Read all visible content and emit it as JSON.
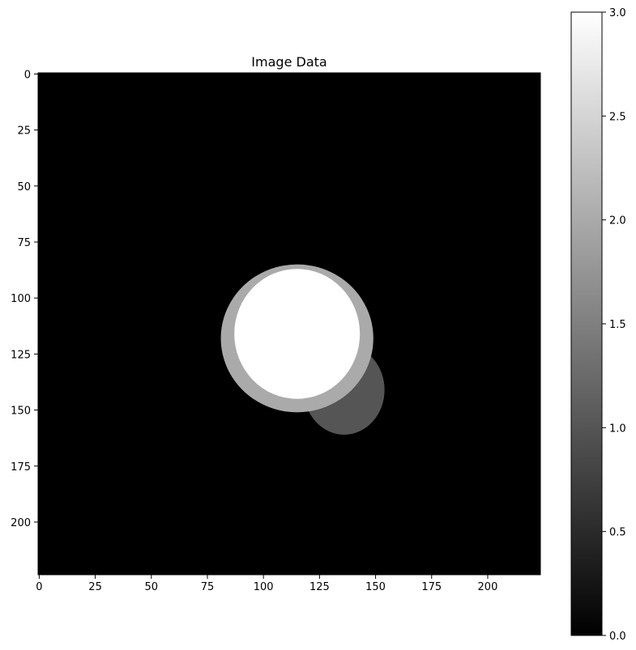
{
  "chart_data": [
    {
      "type": "heatmap",
      "title": "Image Data",
      "xlabel": "",
      "ylabel": "",
      "image_size": [
        224,
        224
      ],
      "xlim": [
        -0.5,
        223.5
      ],
      "ylim": [
        223.5,
        -0.5
      ],
      "x_ticks": [
        0,
        25,
        50,
        75,
        100,
        125,
        150,
        175,
        200
      ],
      "y_ticks": [
        0,
        25,
        50,
        75,
        100,
        125,
        150,
        175,
        200
      ],
      "colormap": "gray",
      "vmin": 0,
      "vmax": 3,
      "regions": [
        {
          "label_value": 0,
          "color": "#000000",
          "description": "background"
        },
        {
          "label_value": 1,
          "color": "#555555",
          "shape": "crescent",
          "center": [
            136,
            141
          ],
          "radii": [
            18,
            20
          ]
        },
        {
          "label_value": 2,
          "color": "#aaaaaa",
          "shape": "ellipse",
          "center": [
            115,
            118
          ],
          "radii": [
            34,
            33
          ]
        },
        {
          "label_value": 3,
          "color": "#ffffff",
          "shape": "ellipse",
          "center": [
            115,
            116
          ],
          "radii": [
            28,
            29
          ]
        }
      ]
    },
    {
      "type": "colorbar",
      "range": [
        0,
        3
      ],
      "ticks": [
        0.0,
        0.5,
        1.0,
        1.5,
        2.0,
        2.5,
        3.0
      ],
      "tick_labels": [
        "0.0",
        "0.5",
        "1.0",
        "1.5",
        "2.0",
        "2.5",
        "3.0"
      ],
      "colors": [
        "#000000",
        "#ffffff"
      ]
    }
  ]
}
